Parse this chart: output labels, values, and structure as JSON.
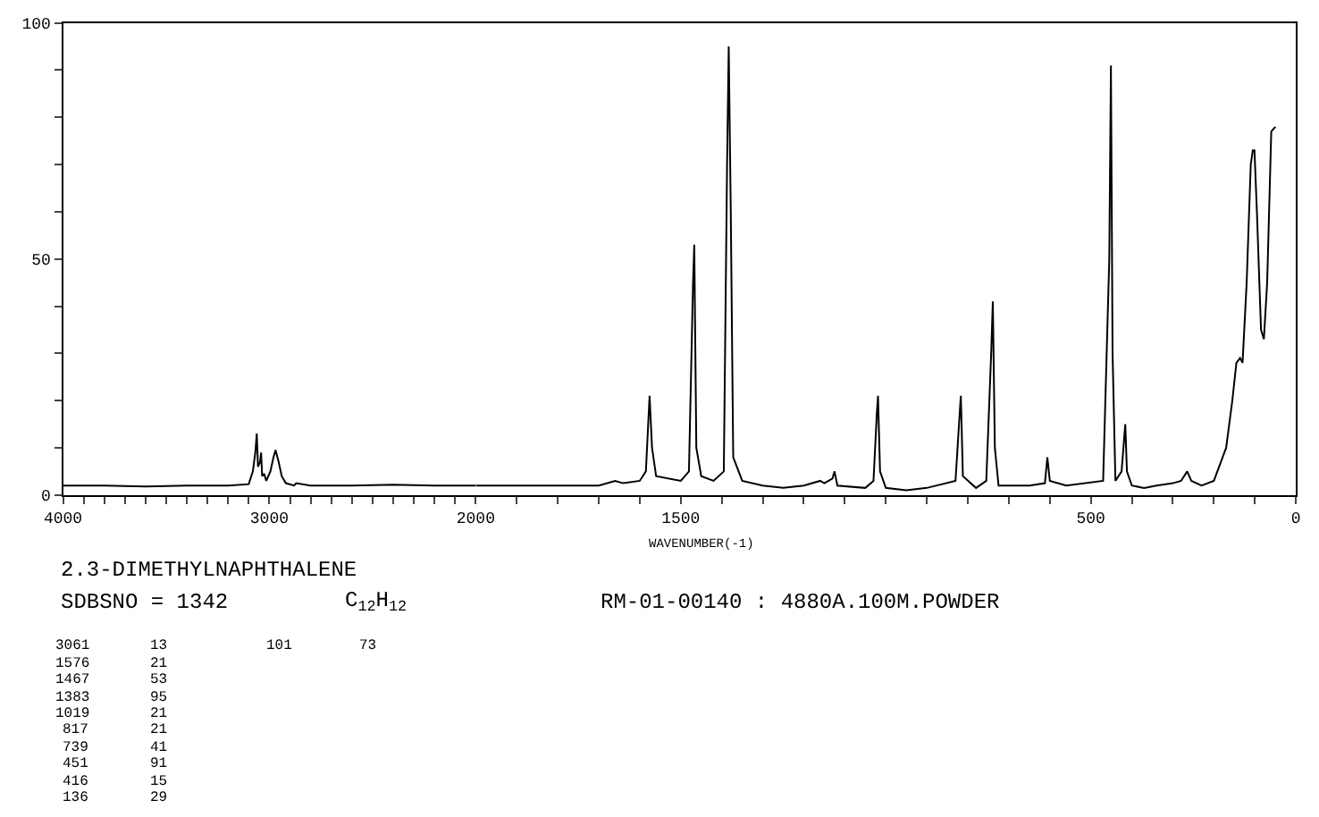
{
  "chart_data": [
    {
      "type": "line",
      "title": "2.3-DIMETHYLNAPHTHALENE",
      "annotations": [
        "SDBSNO = 1342",
        "C$_{12}$H$_{12}$",
        "RM-01-00140 : 4880A.100M.POWDER",
        "3061",
        "13",
        "101",
        "73",
        "1576",
        "21",
        "1467",
        "53",
        "1383",
        "95",
        "1019",
        "21",
        "817",
        "21",
        "739",
        "41",
        "451",
        "91",
        "416",
        "15",
        "136",
        "29"
      ],
      "x": [
        4000,
        3800,
        3600,
        3400,
        3200,
        3100,
        3080,
        3068,
        3061,
        3055,
        3045,
        3040,
        3035,
        3025,
        3015,
        2995,
        2980,
        2970,
        2955,
        2940,
        2920,
        2880,
        2870,
        2800,
        2600,
        2400,
        2200,
        2000
      ],
      "series": [
        {
          "color": "#000000",
          "values": [
            2,
            2,
            1.8,
            2,
            2,
            2.3,
            5,
            9,
            13,
            6,
            7,
            9,
            4,
            4.5,
            3,
            5,
            8,
            9.5,
            7,
            4,
            2.5,
            2,
            2.5,
            2,
            2,
            2.2,
            2,
            2
          ]
        }
      ],
      "xlim": [
        4000,
        2000
      ],
      "xticks": [
        4000,
        {
          "value": 3900,
          "label": null
        },
        {
          "value": 3800,
          "label": null
        },
        {
          "value": 3700,
          "label": null
        },
        {
          "value": 3600,
          "label": null
        },
        {
          "value": 3500,
          "label": null
        },
        {
          "value": 3400,
          "label": null
        },
        {
          "value": 3300,
          "label": null
        },
        {
          "value": 3200,
          "label": null
        },
        {
          "value": 3100,
          "label": null
        },
        3000,
        {
          "value": 2900,
          "label": null
        },
        {
          "value": 2800,
          "label": null
        },
        {
          "value": 2700,
          "label": null
        },
        {
          "value": 2600,
          "label": null
        },
        {
          "value": 2500,
          "label": null
        },
        {
          "value": 2400,
          "label": null
        },
        {
          "value": 2300,
          "label": null
        },
        {
          "value": 2200,
          "label": null
        },
        {
          "value": 2100,
          "label": null
        },
        2000
      ],
      "ylim": [
        0,
        100
      ],
      "yticks": [
        0,
        {
          "value": 10,
          "label": null
        },
        {
          "value": 20,
          "label": null
        },
        {
          "value": 30,
          "label": null
        },
        {
          "value": 40,
          "label": null
        },
        50,
        {
          "value": 60,
          "label": null
        },
        {
          "value": 70,
          "label": null
        },
        {
          "value": 80,
          "label": null
        },
        {
          "value": 90,
          "label": null
        },
        100
      ],
      "legend": false,
      "marker": "none",
      "line_style": "solid"
    },
    {
      "type": "line",
      "xlabel": "WAVENUMBER(-1)",
      "x": [
        2000,
        1800,
        1700,
        1660,
        1640,
        1600,
        1585,
        1576,
        1570,
        1560,
        1500,
        1480,
        1470,
        1467,
        1462,
        1450,
        1420,
        1395,
        1387,
        1383,
        1378,
        1372,
        1350,
        1300,
        1250,
        1200,
        1160,
        1150,
        1130,
        1125,
        1118,
        1050,
        1030,
        1022,
        1019,
        1014,
        1000,
        950,
        900,
        830,
        820,
        817,
        812,
        780,
        755,
        743,
        739,
        734,
        725,
        650,
        612,
        606,
        600,
        560,
        470,
        455,
        451,
        447,
        440,
        425,
        416,
        412,
        400,
        370,
        340,
        300,
        280,
        265,
        255,
        230,
        200,
        170,
        155,
        145,
        136,
        130,
        120,
        110,
        105,
        101,
        95,
        85,
        78,
        70,
        60,
        50
      ],
      "series": [
        {
          "color": "#000000",
          "values": [
            2,
            2,
            2,
            3,
            2.5,
            3,
            5,
            21,
            10,
            4,
            3,
            5,
            45,
            53,
            10,
            4,
            3,
            5,
            70,
            95,
            60,
            8,
            3,
            2,
            1.5,
            2,
            3,
            2.5,
            3.5,
            5,
            2,
            1.5,
            3,
            17,
            21,
            5,
            1.5,
            1,
            1.5,
            3,
            17,
            21,
            4,
            1.5,
            3,
            30,
            41,
            10,
            2,
            2,
            2.5,
            8,
            3,
            2,
            3,
            50,
            91,
            30,
            3,
            5,
            15,
            5,
            2,
            1.5,
            2,
            2.5,
            3,
            5,
            3,
            2,
            3,
            10,
            20,
            28,
            29,
            28,
            45,
            70,
            73,
            73,
            60,
            35,
            33,
            45,
            77,
            78
          ]
        }
      ],
      "xlim": [
        2000,
        0
      ],
      "xticks": [
        {
          "value": 1900,
          "label": null
        },
        {
          "value": 1800,
          "label": null
        },
        {
          "value": 1700,
          "label": null
        },
        {
          "value": 1600,
          "label": null
        },
        1500,
        {
          "value": 1400,
          "label": null
        },
        {
          "value": 1300,
          "label": null
        },
        {
          "value": 1200,
          "label": null
        },
        {
          "value": 1100,
          "label": null
        },
        {
          "value": 1000,
          "label": null
        },
        {
          "value": 900,
          "label": null
        },
        {
          "value": 800,
          "label": null
        },
        {
          "value": 700,
          "label": null
        },
        {
          "value": 600,
          "label": null
        },
        500,
        {
          "value": 400,
          "label": null
        },
        {
          "value": 300,
          "label": null
        },
        {
          "value": 200,
          "label": null
        },
        {
          "value": 100,
          "label": null
        },
        0
      ],
      "ylim": [
        0,
        100
      ],
      "tick_labels": "x",
      "legend": false,
      "marker": "none",
      "line_style": "solid"
    }
  ]
}
